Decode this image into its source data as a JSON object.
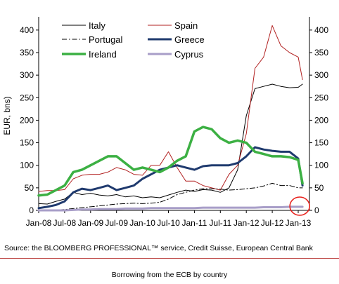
{
  "chart_data": {
    "type": "line",
    "ylabel": "EUR, bns)",
    "ylim": [
      0,
      420
    ],
    "yticks": [
      0,
      50,
      100,
      150,
      200,
      250,
      300,
      350,
      400
    ],
    "xticks": [
      "Jan-08",
      "Jul-08",
      "Jan-09",
      "Jul-09",
      "Jan-10",
      "Jul-10",
      "Jan-11",
      "Jul-11",
      "Jan-12",
      "Jul-12",
      "Jan-13"
    ],
    "x": [
      "Jan-08",
      "Mar-08",
      "May-08",
      "Jul-08",
      "Sep-08",
      "Nov-08",
      "Jan-09",
      "Mar-09",
      "May-09",
      "Jul-09",
      "Sep-09",
      "Nov-09",
      "Jan-10",
      "Mar-10",
      "May-10",
      "Jul-10",
      "Sep-10",
      "Nov-10",
      "Jan-11",
      "Mar-11",
      "May-11",
      "Jul-11",
      "Sep-11",
      "Nov-11",
      "Jan-12",
      "Mar-12",
      "May-12",
      "Jul-12",
      "Sep-12",
      "Nov-12",
      "Jan-13",
      "Feb-13"
    ],
    "series": [
      {
        "name": "Italy",
        "color": "#000000",
        "style": "solid",
        "width": 1,
        "values": [
          15,
          14,
          20,
          25,
          40,
          35,
          38,
          34,
          32,
          35,
          30,
          32,
          28,
          30,
          28,
          34,
          40,
          45,
          42,
          46,
          45,
          40,
          50,
          90,
          210,
          270,
          275,
          280,
          275,
          272,
          273,
          280
        ]
      },
      {
        "name": "Spain",
        "color": "#b22222",
        "style": "solid",
        "width": 1,
        "values": [
          42,
          44,
          44,
          46,
          70,
          78,
          80,
          80,
          85,
          95,
          90,
          80,
          78,
          100,
          100,
          130,
          95,
          65,
          65,
          55,
          50,
          45,
          80,
          100,
          170,
          315,
          340,
          410,
          365,
          350,
          340,
          290
        ]
      },
      {
        "name": "Portugal",
        "color": "#000000",
        "style": "dashdot",
        "width": 1,
        "values": [
          0,
          0,
          1,
          2,
          4,
          6,
          8,
          10,
          12,
          14,
          15,
          16,
          15,
          16,
          18,
          25,
          35,
          40,
          45,
          48,
          48,
          47,
          45,
          46,
          48,
          50,
          54,
          60,
          55,
          55,
          50,
          50
        ]
      },
      {
        "name": "Greece",
        "color": "#1f3a6e",
        "style": "solid",
        "width": 3,
        "values": [
          5,
          8,
          12,
          20,
          40,
          48,
          45,
          50,
          55,
          45,
          50,
          55,
          70,
          80,
          90,
          95,
          100,
          95,
          90,
          98,
          100,
          100,
          100,
          105,
          120,
          140,
          135,
          132,
          130,
          130,
          115,
          55
        ]
      },
      {
        "name": "Ireland",
        "color": "#3cb043",
        "style": "solid",
        "width": 3.5,
        "values": [
          33,
          35,
          45,
          55,
          85,
          90,
          100,
          110,
          120,
          120,
          105,
          90,
          95,
          90,
          85,
          95,
          110,
          120,
          175,
          185,
          180,
          160,
          150,
          155,
          150,
          130,
          125,
          120,
          120,
          118,
          112,
          60
        ]
      },
      {
        "name": "Cyprus",
        "color": "#a89ec8",
        "style": "solid",
        "width": 3,
        "values": [
          0,
          0,
          0,
          0,
          1,
          2,
          2,
          3,
          3,
          3,
          4,
          4,
          4,
          5,
          5,
          5,
          5,
          5,
          5,
          6,
          6,
          6,
          6,
          6,
          6,
          6,
          7,
          7,
          7,
          8,
          8,
          8
        ]
      }
    ],
    "legend": {
      "position": "top-left",
      "columns": 2
    },
    "highlight": {
      "type": "circle",
      "color": "#e8211c",
      "at": "Feb-13"
    }
  },
  "source": "Source: the BLOOMBERG PROFESSIONAL™ service, Credit Suisse, European Central Bank",
  "caption": "Borrowing from the ECB by country"
}
